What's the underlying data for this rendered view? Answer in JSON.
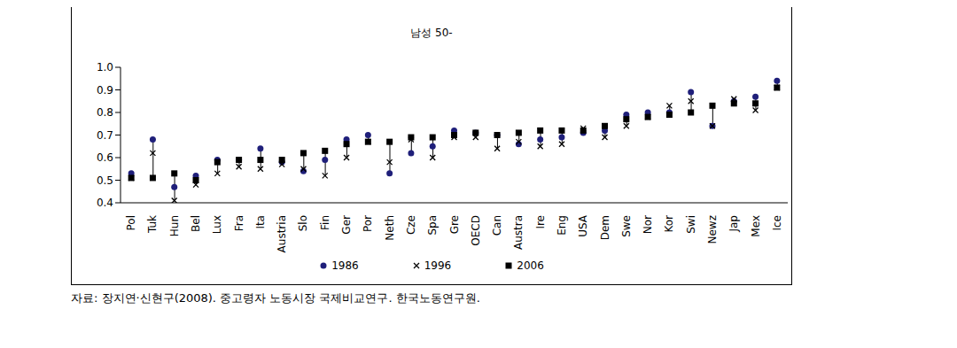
{
  "chart_data": {
    "type": "dot_range",
    "title": "남성 50-",
    "source": "자료: 장지연·신현구(2008). 중고령자 노동시장 국제비교연구. 한국노동연구원.",
    "categories": [
      "Pol",
      "Tuk",
      "Hun",
      "Bel",
      "Lux",
      "Fra",
      "Ita",
      "Austria",
      "Slo",
      "Fin",
      "Ger",
      "Por",
      "Neth",
      "Cze",
      "Spa",
      "Gre",
      "OECD",
      "Can",
      "Austra",
      "Ire",
      "Eng",
      "USA",
      "Dem",
      "Swe",
      "Nor",
      "Kor",
      "Swi",
      "Newz",
      "Jap",
      "Mex",
      "Ice"
    ],
    "series": [
      {
        "name": "1986",
        "color": "#1f1f7a",
        "marker": "circle",
        "values": [
          0.53,
          0.68,
          0.47,
          0.52,
          0.59,
          0.59,
          0.64,
          0.58,
          0.54,
          0.59,
          0.68,
          0.7,
          0.53,
          0.62,
          0.65,
          0.72,
          0.71,
          0.7,
          0.66,
          0.68,
          0.69,
          0.71,
          0.72,
          0.79,
          0.8,
          0.8,
          0.89,
          0.74,
          0.85,
          0.87,
          0.94
        ]
      },
      {
        "name": "1996",
        "color": "#000000",
        "marker": "x",
        "values": [
          0.51,
          0.62,
          0.41,
          0.48,
          0.53,
          0.56,
          0.55,
          0.57,
          0.55,
          0.52,
          0.6,
          0.67,
          0.58,
          0.68,
          0.6,
          0.69,
          0.69,
          0.64,
          0.67,
          0.65,
          0.66,
          0.73,
          0.69,
          0.74,
          0.78,
          0.83,
          0.85,
          0.74,
          0.86,
          0.81,
          0.91
        ]
      },
      {
        "name": "2006",
        "color": "#000000",
        "marker": "square",
        "values": [
          0.51,
          0.51,
          0.53,
          0.5,
          0.58,
          0.59,
          0.59,
          0.59,
          0.62,
          0.63,
          0.66,
          0.67,
          0.67,
          0.69,
          0.69,
          0.7,
          0.71,
          0.7,
          0.71,
          0.72,
          0.72,
          0.72,
          0.74,
          0.77,
          0.78,
          0.79,
          0.8,
          0.83,
          0.84,
          0.84,
          0.91
        ]
      }
    ],
    "ylim": [
      0.4,
      1.0
    ],
    "yticks": [
      0.4,
      0.5,
      0.6,
      0.7,
      0.8,
      0.9,
      {
        "value": 1,
        "label": "1.0"
      }
    ],
    "grid": false,
    "legend": "bottom"
  }
}
